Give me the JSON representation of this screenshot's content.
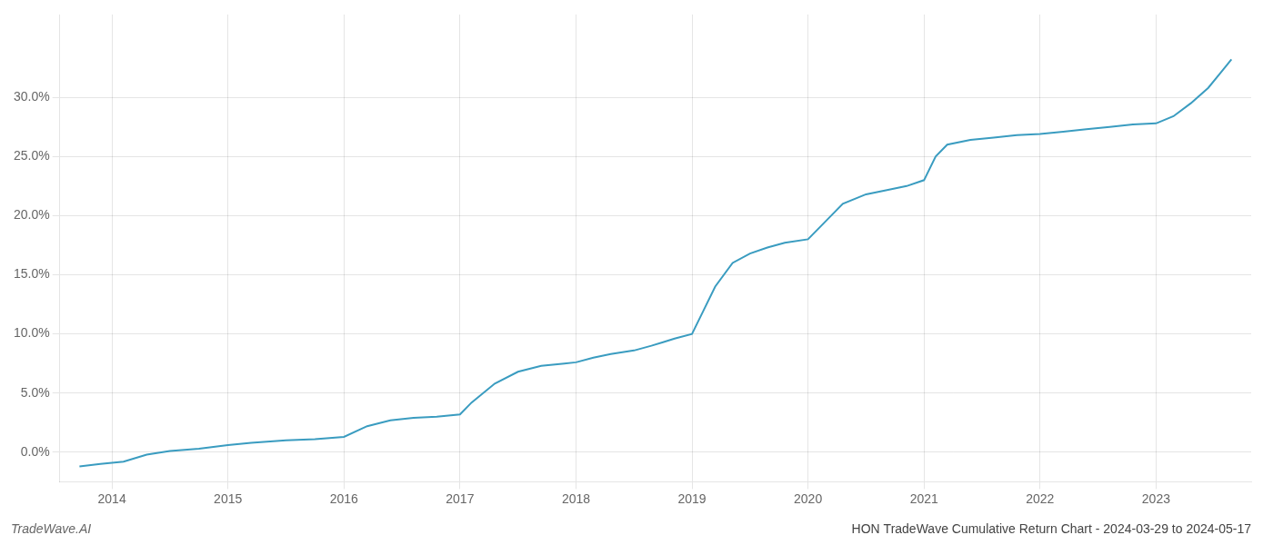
{
  "chart_data": {
    "type": "line",
    "title": "HON TradeWave Cumulative Return Chart - 2024-03-29 to 2024-05-17",
    "annotations": [
      "TradeWave.AI"
    ],
    "color": "#3a9cc0",
    "grid": true,
    "x": [
      2013.72,
      2013.9,
      2014.1,
      2014.3,
      2014.5,
      2014.75,
      2015.0,
      2015.2,
      2015.5,
      2015.75,
      2016.0,
      2016.2,
      2016.4,
      2016.6,
      2016.8,
      2017.0,
      2017.1,
      2017.3,
      2017.5,
      2017.7,
      2017.9,
      2018.0,
      2018.15,
      2018.3,
      2018.5,
      2018.65,
      2018.75,
      2018.85,
      2019.0,
      2019.1,
      2019.2,
      2019.35,
      2019.5,
      2019.65,
      2019.8,
      2020.0,
      2020.15,
      2020.3,
      2020.5,
      2020.7,
      2020.85,
      2021.0,
      2021.1,
      2021.2,
      2021.4,
      2021.6,
      2021.8,
      2022.0,
      2022.2,
      2022.4,
      2022.6,
      2022.8,
      2023.0,
      2023.15,
      2023.3,
      2023.45,
      2023.55,
      2023.65
    ],
    "values": [
      -0.012,
      -0.01,
      -0.008,
      -0.002,
      0.001,
      0.003,
      0.006,
      0.008,
      0.01,
      0.011,
      0.013,
      0.022,
      0.027,
      0.029,
      0.03,
      0.032,
      0.042,
      0.058,
      0.068,
      0.073,
      0.075,
      0.076,
      0.08,
      0.083,
      0.086,
      0.09,
      0.093,
      0.096,
      0.1,
      0.12,
      0.14,
      0.16,
      0.168,
      0.173,
      0.177,
      0.18,
      0.195,
      0.21,
      0.218,
      0.222,
      0.225,
      0.23,
      0.25,
      0.26,
      0.264,
      0.266,
      0.268,
      0.269,
      0.271,
      0.273,
      0.275,
      0.277,
      0.278,
      0.284,
      0.295,
      0.308,
      0.32,
      0.332
    ],
    "xlim": [
      2013.55,
      2023.82
    ],
    "xticks": [
      2014,
      2015,
      2016,
      2017,
      2018,
      2019,
      2020,
      2021,
      2022,
      2023
    ],
    "ylim": [
      -0.025,
      0.37
    ],
    "yticks": [
      {
        "value": 0.0,
        "label": "0.0%"
      },
      {
        "value": 0.05,
        "label": "5.0%"
      },
      {
        "value": 0.1,
        "label": "10.0%"
      },
      {
        "value": 0.15,
        "label": "15.0%"
      },
      {
        "value": 0.2,
        "label": "20.0%"
      },
      {
        "value": 0.25,
        "label": "25.0%"
      },
      {
        "value": 0.3,
        "label": "30.0%"
      }
    ]
  }
}
